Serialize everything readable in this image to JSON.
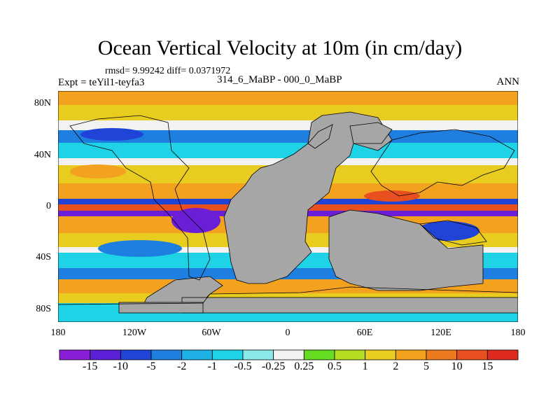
{
  "title": "Ocean Vertical Velocity at 10m (in cm/day)",
  "stats": "rmsd= 9.99242 diff= 0.0371972",
  "experiment": "Expt = teYil1-teyfa3",
  "case_label": "314_6_MaBP - 000_0_MaBP",
  "season": "ANN",
  "y_ticks": [
    "80N",
    "40N",
    "0",
    "40S",
    "80S"
  ],
  "x_ticks": [
    "180",
    "120W",
    "60W",
    "0",
    "60E",
    "120E",
    "180"
  ],
  "colorbar": {
    "labels": [
      "-15",
      "-10",
      "-5",
      "-2",
      "-1",
      "-0.5",
      "-0.25",
      "0.25",
      "0.5",
      "1",
      "2",
      "5",
      "10",
      "15"
    ],
    "colors": [
      "#8a1fd6",
      "#5a1fd6",
      "#2045d6",
      "#1f7fe0",
      "#1fb0e6",
      "#1fd2e6",
      "#8ae8e8",
      "#f2f2f2",
      "#66dd22",
      "#b5dd22",
      "#e8cc1f",
      "#f2a21f",
      "#ee7a1f",
      "#e8501f",
      "#e02a1f"
    ]
  },
  "map_colors": {
    "land": "#a6a6a6",
    "deep_blue": "#2045d6",
    "blue": "#1f7fe0",
    "cyan": "#1fd2e6",
    "light": "#f2f2f2",
    "yellow": "#e8cc1f",
    "orange": "#f2a21f",
    "red": "#e8501f",
    "purple": "#6a1fd6"
  }
}
